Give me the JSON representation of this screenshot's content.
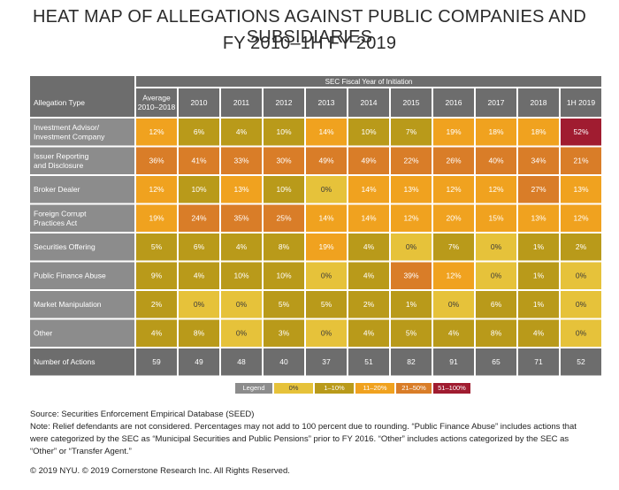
{
  "title_line1": "HEAT MAP OF ALLEGATIONS AGAINST PUBLIC COMPANIES AND SUBSIDIARIES",
  "title_line2": "FY 2010–1H FY 2019",
  "chart_data": {
    "type": "heatmap",
    "header_super": "SEC Fiscal Year of Initiation",
    "row_header": "Allegation Type",
    "columns": [
      "Average\n2010–2018",
      "2010",
      "2011",
      "2012",
      "2013",
      "2014",
      "2015",
      "2016",
      "2017",
      "2018",
      "1H 2019"
    ],
    "rows": [
      {
        "label": "Investment Advisor/\nInvestment Company",
        "values": [
          12,
          6,
          4,
          10,
          14,
          10,
          7,
          19,
          18,
          18,
          52
        ]
      },
      {
        "label": "Issuer Reporting\nand Disclosure",
        "values": [
          36,
          41,
          33,
          30,
          49,
          49,
          22,
          26,
          40,
          34,
          21
        ]
      },
      {
        "label": "Broker Dealer",
        "values": [
          12,
          10,
          13,
          10,
          0,
          14,
          13,
          12,
          12,
          27,
          13
        ]
      },
      {
        "label": "Foreign Corrupt\nPractices Act",
        "values": [
          19,
          24,
          35,
          25,
          14,
          14,
          12,
          20,
          15,
          13,
          12
        ]
      },
      {
        "label": "Securities Offering",
        "values": [
          5,
          6,
          4,
          8,
          19,
          4,
          0,
          7,
          0,
          1,
          2
        ]
      },
      {
        "label": "Public Finance Abuse",
        "values": [
          9,
          4,
          10,
          10,
          0,
          4,
          39,
          12,
          0,
          1,
          0
        ]
      },
      {
        "label": "Market Manipulation",
        "values": [
          2,
          0,
          0,
          5,
          5,
          2,
          1,
          0,
          6,
          1,
          0
        ]
      },
      {
        "label": "Other",
        "values": [
          4,
          8,
          0,
          3,
          0,
          4,
          5,
          4,
          8,
          4,
          0
        ]
      }
    ],
    "totals_label": "Number of Actions",
    "totals": [
      59,
      49,
      48,
      40,
      37,
      51,
      82,
      91,
      65,
      71,
      52
    ],
    "value_suffix": "%",
    "color_bins": [
      {
        "label": "0%",
        "min": 0,
        "max": 0,
        "color": "#e6c23a",
        "text": "#3a3a3a"
      },
      {
        "label": "1–10%",
        "min": 1,
        "max": 10,
        "color": "#b99a1a",
        "text": "#ffffff"
      },
      {
        "label": "11–20%",
        "min": 11,
        "max": 20,
        "color": "#f0a21f",
        "text": "#ffffff"
      },
      {
        "label": "21–50%",
        "min": 21,
        "max": 50,
        "color": "#d97d28",
        "text": "#ffffff"
      },
      {
        "label": "51–100%",
        "min": 51,
        "max": 100,
        "color": "#a01c30",
        "text": "#ffffff"
      }
    ],
    "header_color": "#6d6d6d",
    "row_label_color": "#8c8c8c",
    "totals_color": "#6d6d6d"
  },
  "legend": {
    "title": "Legend",
    "items": [
      "0%",
      "1–10%",
      "11–20%",
      "21–50%",
      "51–100%"
    ]
  },
  "source": "Source: Securities Enforcement Empirical Database (SEED)",
  "note": "Note: Relief defendants are not considered. Percentages may not add to 100 percent due to rounding. “Public Finance Abuse” includes actions that were categorized by the SEC as “Municipal Securities and Public Pensions” prior to FY 2016. “Other” includes actions categorized by the SEC as “Other” or “Transfer Agent.”",
  "copyright": "© 2019 NYU. © 2019 Cornerstone Research Inc. All Rights Reserved."
}
